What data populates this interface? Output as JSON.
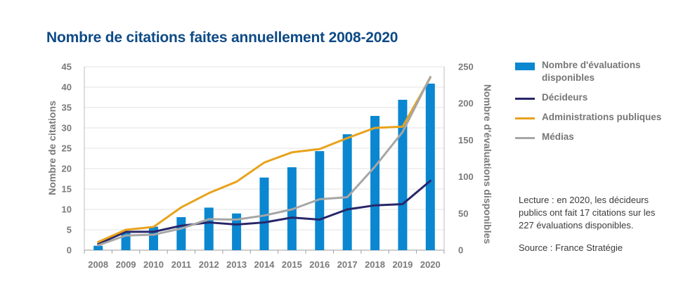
{
  "chart_data": {
    "type": "bar+line",
    "title": "Nombre de citations faites annuellement 2008-2020",
    "categories": [
      "2008",
      "2009",
      "2010",
      "2011",
      "2012",
      "2013",
      "2014",
      "2015",
      "2016",
      "2017",
      "2018",
      "2019",
      "2020"
    ],
    "left_axis": {
      "label": "Nombre de citations",
      "ylim": [
        0,
        45
      ],
      "ticks": [
        0,
        5,
        10,
        15,
        20,
        25,
        30,
        35,
        40,
        45
      ]
    },
    "right_axis": {
      "label": "Nombre d'évaluations disponibles",
      "ylim": [
        0,
        250
      ],
      "ticks": [
        0,
        50,
        100,
        150,
        200,
        250
      ]
    },
    "grid": true,
    "series": [
      {
        "name": "Nombre d'évaluations disponibles",
        "kind": "bar",
        "axis": "right",
        "color": "#0a87d0",
        "values": [
          6,
          26,
          32,
          45,
          58,
          50,
          99,
          113,
          135,
          158,
          183,
          205,
          227
        ]
      },
      {
        "name": "Décideurs",
        "kind": "line",
        "axis": "left",
        "color": "#28266a",
        "values": [
          1.5,
          4.5,
          4.5,
          6,
          6.8,
          6.3,
          6.8,
          8,
          7.5,
          10,
          11,
          11.3,
          17
        ]
      },
      {
        "name": "Administrations publiques",
        "kind": "line",
        "axis": "left",
        "color": "#e8a21c",
        "values": [
          2,
          5,
          5.7,
          10.5,
          14,
          16.8,
          21.5,
          24,
          24.8,
          27.5,
          30,
          30.3,
          42.3
        ]
      },
      {
        "name": "Médias",
        "kind": "line",
        "axis": "left",
        "color": "#a6a6a6",
        "values": [
          1.2,
          3.6,
          3.8,
          5.3,
          7.6,
          7.5,
          8.5,
          10,
          12.5,
          13,
          20.5,
          29,
          42.5
        ]
      }
    ]
  },
  "legend": {
    "items": [
      {
        "label": "Nombre d'évaluations disponibles",
        "color": "#0a87d0",
        "kind": "bar"
      },
      {
        "label": "Décideurs",
        "color": "#28266a",
        "kind": "line"
      },
      {
        "label": "Administrations publiques",
        "color": "#e8a21c",
        "kind": "line"
      },
      {
        "label": "Médias",
        "color": "#a6a6a6",
        "kind": "line"
      }
    ]
  },
  "note": "Lecture : en 2020, les décideurs publics ont fait 17 citations sur les 227 évaluations disponibles.",
  "source": "Source : France Stratégie"
}
